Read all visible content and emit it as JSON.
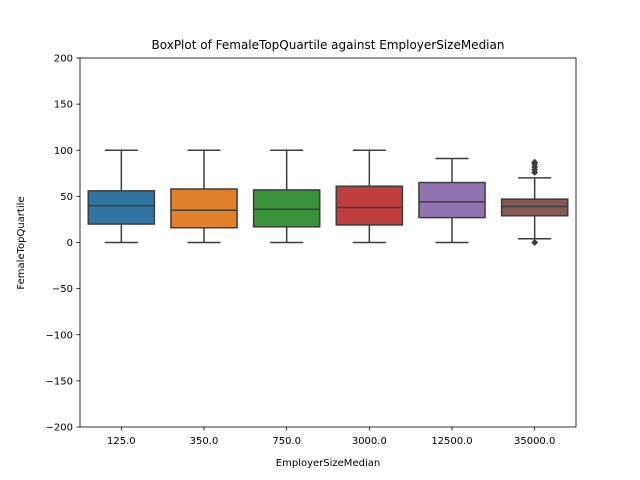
{
  "chart_data": {
    "type": "box",
    "title": "BoxPlot of FemaleTopQuartile against EmployerSizeMedian",
    "xlabel": "EmployerSizeMedian",
    "ylabel": "FemaleTopQuartile",
    "ylim": [
      -200,
      200
    ],
    "yticks": [
      "200",
      "150",
      "100",
      "50",
      "0",
      "−50",
      "−100",
      "−150",
      "−200"
    ],
    "ytick_values": [
      200,
      150,
      100,
      50,
      0,
      -50,
      -100,
      -150,
      -200
    ],
    "categories": [
      "125.0",
      "350.0",
      "750.0",
      "3000.0",
      "12500.0",
      "35000.0"
    ],
    "boxes": [
      {
        "category": "125.0",
        "whisker_low": 0,
        "q1": 20,
        "median": 40,
        "q3": 56,
        "whisker_high": 100,
        "outliers": [],
        "color": "#3274a1"
      },
      {
        "category": "350.0",
        "whisker_low": 0,
        "q1": 16,
        "median": 35,
        "q3": 58,
        "whisker_high": 100,
        "outliers": [],
        "color": "#e1812c"
      },
      {
        "category": "750.0",
        "whisker_low": 0,
        "q1": 17,
        "median": 36,
        "q3": 57,
        "whisker_high": 100,
        "outliers": [],
        "color": "#3a923a"
      },
      {
        "category": "3000.0",
        "whisker_low": 0,
        "q1": 19,
        "median": 38,
        "q3": 61,
        "whisker_high": 100,
        "outliers": [],
        "color": "#c03d3e"
      },
      {
        "category": "12500.0",
        "whisker_low": 0,
        "q1": 27,
        "median": 44,
        "q3": 65,
        "whisker_high": 91,
        "outliers": [],
        "color": "#9372b2"
      },
      {
        "category": "35000.0",
        "whisker_low": 4,
        "q1": 29,
        "median": 39,
        "q3": 47,
        "whisker_high": 70,
        "outliers": [
          76,
          79,
          82,
          85,
          87,
          0
        ],
        "color": "#845b53"
      }
    ],
    "line_color": "#3d3d3d",
    "grid": false,
    "legend": "none"
  }
}
